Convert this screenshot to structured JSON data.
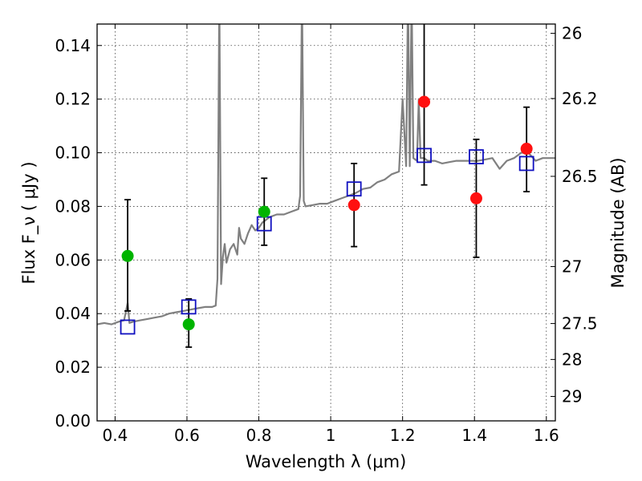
{
  "chart_data": {
    "type": "scatter",
    "xlabel": "Wavelength  λ (μm)",
    "ylabel": "Flux  F_ν  ( μJy )",
    "ylabel_right": "Magnitude (AB)",
    "xlim": [
      0.35,
      1.625
    ],
    "ylim": [
      0,
      0.148
    ],
    "grid": true,
    "x_ticks": [
      0.4,
      0.6,
      0.8,
      1.0,
      1.2,
      1.4,
      1.6
    ],
    "x_tick_labels": [
      "0.4",
      "0.6",
      "0.8",
      "1",
      "1.2",
      "1.4",
      "1.6"
    ],
    "y_ticks": [
      0.0,
      0.02,
      0.04,
      0.06,
      0.08,
      0.1,
      0.12,
      0.14
    ],
    "y_tick_labels": [
      "0.00",
      "0.02",
      "0.04",
      "0.06",
      "0.08",
      "0.10",
      "0.12",
      "0.14"
    ],
    "right_ticks": [
      {
        "label": "26",
        "mag": 26.0
      },
      {
        "label": "26.2",
        "mag": 26.2
      },
      {
        "label": "26.5",
        "mag": 26.5
      },
      {
        "label": "27",
        "mag": 27.0
      },
      {
        "label": "27.5",
        "mag": 27.5
      },
      {
        "label": "28",
        "mag": 28.0
      },
      {
        "label": "29",
        "mag": 29.0
      }
    ],
    "colors": {
      "spectrum": "#808080",
      "model_points": "#1010c0",
      "green_points": "#00b400",
      "red_points": "#ff1010",
      "error_bars": "#000000"
    },
    "series": [
      {
        "kind": "line",
        "x": [
          0.35,
          0.37,
          0.39,
          0.41,
          0.425,
          0.435,
          0.44,
          0.45,
          0.47,
          0.49,
          0.51,
          0.53,
          0.55,
          0.57,
          0.59,
          0.61,
          0.63,
          0.65,
          0.67,
          0.68,
          0.685,
          0.69,
          0.695,
          0.7,
          0.705,
          0.71,
          0.72,
          0.73,
          0.74,
          0.745,
          0.75,
          0.76,
          0.77,
          0.78,
          0.79,
          0.8,
          0.81,
          0.82,
          0.83,
          0.85,
          0.87,
          0.89,
          0.91,
          0.915,
          0.92,
          0.925,
          0.93,
          0.95,
          0.97,
          0.99,
          1.01,
          1.03,
          1.05,
          1.07,
          1.09,
          1.11,
          1.13,
          1.15,
          1.17,
          1.19,
          1.2,
          1.21,
          1.215,
          1.22,
          1.225,
          1.23,
          1.24,
          1.245,
          1.25,
          1.26,
          1.27,
          1.29,
          1.31,
          1.33,
          1.35,
          1.37,
          1.39,
          1.41,
          1.43,
          1.45,
          1.47,
          1.49,
          1.51,
          1.53,
          1.55,
          1.57,
          1.59,
          1.61,
          1.625
        ],
        "y": [
          0.036,
          0.0365,
          0.036,
          0.037,
          0.0375,
          0.044,
          0.0365,
          0.037,
          0.0375,
          0.038,
          0.0385,
          0.039,
          0.04,
          0.0405,
          0.041,
          0.0415,
          0.042,
          0.0425,
          0.0425,
          0.043,
          0.053,
          0.16,
          0.051,
          0.061,
          0.066,
          0.059,
          0.064,
          0.066,
          0.062,
          0.072,
          0.068,
          0.066,
          0.07,
          0.073,
          0.071,
          0.072,
          0.074,
          0.075,
          0.076,
          0.077,
          0.077,
          0.078,
          0.079,
          0.084,
          0.16,
          0.082,
          0.08,
          0.0805,
          0.081,
          0.081,
          0.082,
          0.083,
          0.084,
          0.085,
          0.0865,
          0.087,
          0.089,
          0.09,
          0.092,
          0.093,
          0.12,
          0.095,
          0.16,
          0.095,
          0.16,
          0.098,
          0.097,
          0.12,
          0.098,
          0.098,
          0.097,
          0.097,
          0.096,
          0.0965,
          0.097,
          0.097,
          0.097,
          0.097,
          0.0975,
          0.098,
          0.094,
          0.097,
          0.098,
          0.1,
          0.1,
          0.097,
          0.098,
          0.098,
          0.098
        ]
      },
      {
        "kind": "squares",
        "x": [
          0.435,
          0.605,
          0.815,
          1.065,
          1.26,
          1.405,
          1.545
        ],
        "y": [
          0.035,
          0.0425,
          0.0735,
          0.0865,
          0.099,
          0.0985,
          0.096
        ]
      },
      {
        "kind": "points-green",
        "x": [
          0.435,
          0.605,
          0.815
        ],
        "y": [
          0.0615,
          0.036,
          0.078
        ],
        "err_low": [
          0.0205,
          0.0085,
          0.0125
        ],
        "err_high": [
          0.021,
          0.0095,
          0.0125
        ]
      },
      {
        "kind": "points-red",
        "x": [
          1.065,
          1.26,
          1.405,
          1.545
        ],
        "y": [
          0.0805,
          0.119,
          0.083,
          0.1015
        ],
        "err_low": [
          0.0155,
          0.031,
          0.022,
          0.016
        ],
        "err_high": [
          0.0155,
          0.031,
          0.022,
          0.0155
        ]
      }
    ]
  }
}
